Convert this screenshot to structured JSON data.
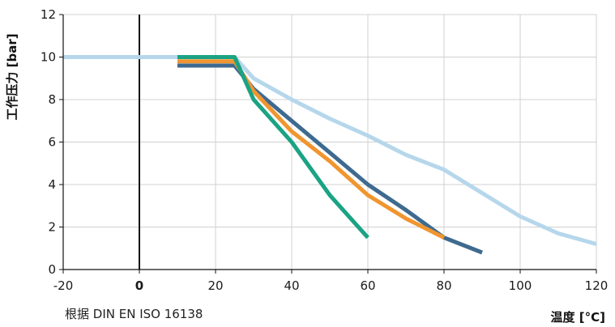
{
  "chart_data": {
    "type": "line",
    "xlabel": "温度 [°C]",
    "ylabel": "工作压力 [bar]",
    "xlim": [
      -20,
      120
    ],
    "ylim": [
      0,
      12
    ],
    "x_ticks": [
      "-20",
      "0",
      "20",
      "40",
      "60",
      "80",
      "100",
      "120"
    ],
    "y_ticks": [
      "0",
      "2",
      "4",
      "6",
      "8",
      "10",
      "12"
    ],
    "emphasized_x_tick": "0",
    "reference_line_x": 0,
    "grid": "vertical and horizontal, light gray",
    "note": "根据 DIN EN ISO 16138",
    "series": [
      {
        "color": "#b6d7eb",
        "x": [
          -20,
          25,
          30,
          40,
          50,
          60,
          70,
          80,
          90,
          100,
          110,
          120
        ],
        "y": [
          10,
          10,
          9,
          8,
          7.1,
          6.3,
          5.4,
          4.7,
          3.6,
          2.5,
          1.7,
          1.2
        ]
      },
      {
        "color": "#3e6a8f",
        "x": [
          10,
          25,
          30,
          40,
          50,
          60,
          70,
          80,
          90
        ],
        "y": [
          9.6,
          9.6,
          8.5,
          7,
          5.5,
          4,
          2.8,
          1.5,
          0.8
        ]
      },
      {
        "color": "#f0952f",
        "x": [
          10,
          25,
          30,
          40,
          50,
          60,
          70,
          80
        ],
        "y": [
          9.8,
          9.8,
          8.4,
          6.5,
          5.1,
          3.5,
          2.4,
          1.5
        ]
      },
      {
        "color": "#1aa384",
        "x": [
          10,
          25,
          30,
          40,
          50,
          60
        ],
        "y": [
          10,
          10,
          8,
          6,
          3.5,
          1.5
        ]
      }
    ]
  }
}
